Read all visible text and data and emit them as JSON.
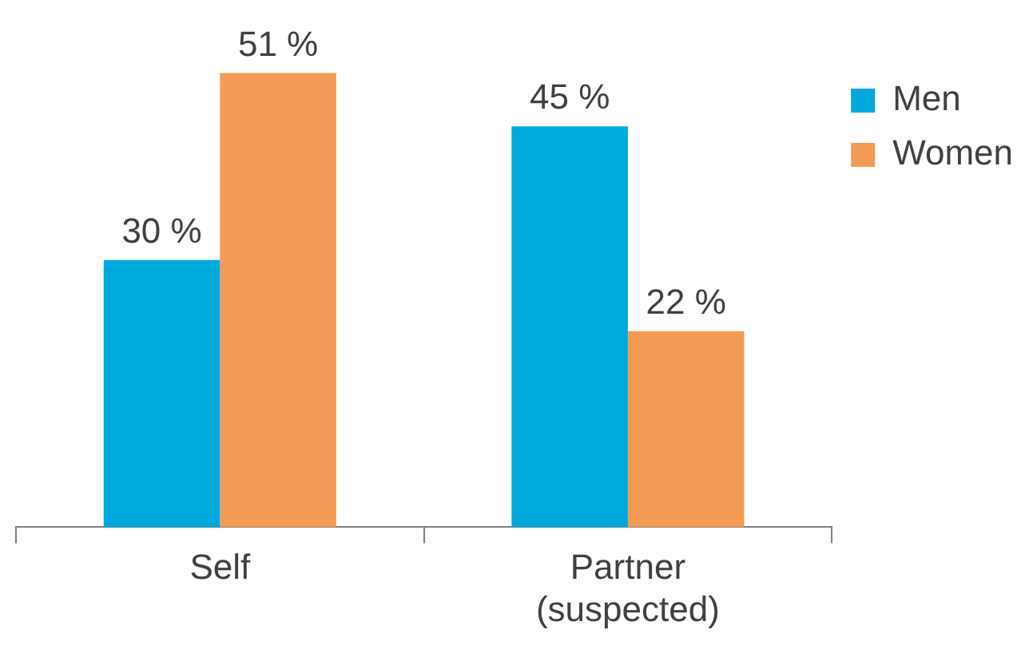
{
  "chart_data": {
    "type": "bar",
    "categories": [
      "Self",
      "Partner (suspected)"
    ],
    "series": [
      {
        "name": "Men",
        "color": "#00a9dc",
        "values": [
          30,
          45
        ],
        "value_labels": [
          "30 %",
          "45 %"
        ]
      },
      {
        "name": "Women",
        "color": "#f39a55",
        "values": [
          51,
          22
        ],
        "value_labels": [
          "51 %",
          "22 %"
        ]
      }
    ],
    "legend": "top right",
    "grid": false
  }
}
